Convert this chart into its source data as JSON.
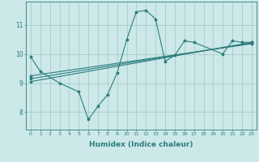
{
  "x_main": [
    0,
    1,
    3,
    5,
    6,
    7,
    8,
    9,
    10,
    11,
    12,
    13,
    14,
    15,
    16,
    17,
    20,
    21,
    22,
    23
  ],
  "y_main": [
    9.9,
    9.4,
    9.0,
    8.7,
    7.75,
    8.2,
    8.6,
    9.35,
    10.5,
    11.45,
    11.5,
    11.2,
    9.75,
    9.95,
    10.45,
    10.4,
    10.0,
    10.45,
    10.4,
    10.4
  ],
  "trend_lines": [
    {
      "x": [
        0,
        23
      ],
      "y": [
        9.05,
        10.4
      ]
    },
    {
      "x": [
        0,
        23
      ],
      "y": [
        9.15,
        10.38
      ]
    },
    {
      "x": [
        0,
        23
      ],
      "y": [
        9.25,
        10.35
      ]
    }
  ],
  "bg_color": "#cce8e8",
  "line_color": "#2d7d7d",
  "grid_color": "#aacccc",
  "xlabel": "Humidex (Indice chaleur)",
  "yticks": [
    8,
    9,
    10,
    11
  ],
  "xticks": [
    0,
    1,
    2,
    3,
    4,
    5,
    6,
    7,
    8,
    9,
    10,
    11,
    12,
    13,
    14,
    15,
    16,
    17,
    18,
    19,
    20,
    21,
    22,
    23
  ],
  "xlim": [
    -0.5,
    23.5
  ],
  "ylim": [
    7.4,
    11.8
  ]
}
